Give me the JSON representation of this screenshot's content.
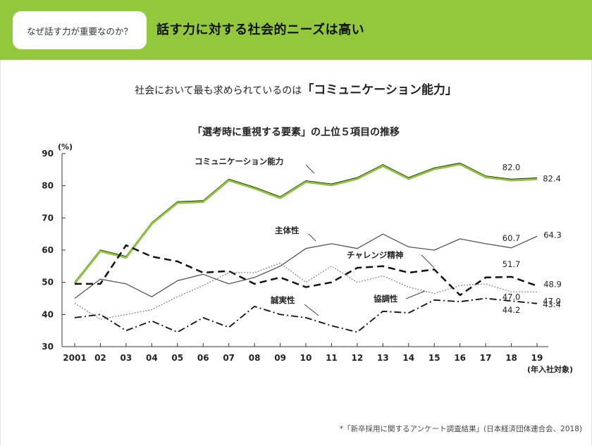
{
  "header": {
    "tag": "なぜ話す力が重要なのか？",
    "title": "話す力に対する社会的ニーズは高い"
  },
  "subtitle": {
    "prefix": "社会において最も求められているのは",
    "highlight": "「コミュニケーション能力」"
  },
  "footnote": "*「新卒採用に関するアンケート調査結果」(日本経済団体連合会、2018)",
  "colors": {
    "header_bg": "#93c83d",
    "highlight_line": "#8cc63f",
    "ink": "#111111",
    "gray_line": "#555555",
    "dotted_line": "#888888"
  },
  "chart_data": {
    "type": "line",
    "title": "「選考時に重視する要素」の上位５項目の推移",
    "y_unit": "(%)",
    "x_note": "(年入社対象)",
    "categories": [
      "2001",
      "02",
      "03",
      "04",
      "05",
      "06",
      "07",
      "08",
      "09",
      "10",
      "11",
      "12",
      "13",
      "14",
      "15",
      "16",
      "17",
      "18",
      "19"
    ],
    "yticks": [
      30,
      40,
      50,
      60,
      70,
      80,
      90
    ],
    "ylim": [
      30,
      90
    ],
    "grid": false,
    "series": [
      {
        "name": "コミュニケーション能力",
        "style": "solid-highlight",
        "values": [
          50,
          60,
          58,
          68.5,
          75,
          75.3,
          82,
          79.5,
          76.5,
          81.5,
          80.5,
          82.5,
          86.5,
          82.5,
          85.5,
          87,
          83,
          82.0,
          82.4
        ]
      },
      {
        "name": "主体性",
        "style": "thin",
        "values": [
          45,
          51,
          49.5,
          45.5,
          50.5,
          52.5,
          49.5,
          51.5,
          55,
          60.5,
          62,
          60.5,
          65,
          61,
          60,
          63.5,
          62,
          60.7,
          64.3
        ]
      },
      {
        "name": "チャレンジ精神",
        "style": "dashed",
        "values": [
          49.5,
          49.5,
          61.5,
          58,
          56.5,
          53,
          53.5,
          49.5,
          51.5,
          48.5,
          50,
          54.5,
          55,
          53,
          54,
          46,
          51.5,
          51.7,
          48.9
        ]
      },
      {
        "name": "協調性",
        "style": "dotted",
        "values": [
          43.5,
          38.5,
          40,
          41.5,
          45.5,
          49,
          53,
          53,
          56,
          50,
          55,
          50,
          52,
          48.5,
          46.5,
          49,
          49.5,
          47.0,
          47.0
        ]
      },
      {
        "name": "誠実性",
        "style": "dashdot",
        "values": [
          39,
          40,
          35,
          38,
          34.5,
          39,
          36,
          42.5,
          40,
          39,
          36.5,
          34.5,
          41,
          40.5,
          44.5,
          44,
          45,
          44.2,
          43.4
        ]
      }
    ],
    "data_labels": [
      {
        "text": "82.0",
        "series": "コミュニケーション能力",
        "index": 17
      },
      {
        "text": "82.4",
        "series": "コミュニケーション能力",
        "index": 18
      },
      {
        "text": "60.7",
        "series": "主体性",
        "index": 17
      },
      {
        "text": "64.3",
        "series": "主体性",
        "index": 18
      },
      {
        "text": "51.7",
        "series": "チャレンジ精神",
        "index": 17
      },
      {
        "text": "48.9",
        "series": "チャレンジ精神",
        "index": 18
      },
      {
        "text": "47.0",
        "series": "協調性",
        "index": 17
      },
      {
        "text": "47.0",
        "series": "協調性",
        "index": 18
      },
      {
        "text": "44.2",
        "series": "誠実性",
        "index": 17
      },
      {
        "text": "43.4",
        "series": "誠実性",
        "index": 18
      }
    ]
  }
}
